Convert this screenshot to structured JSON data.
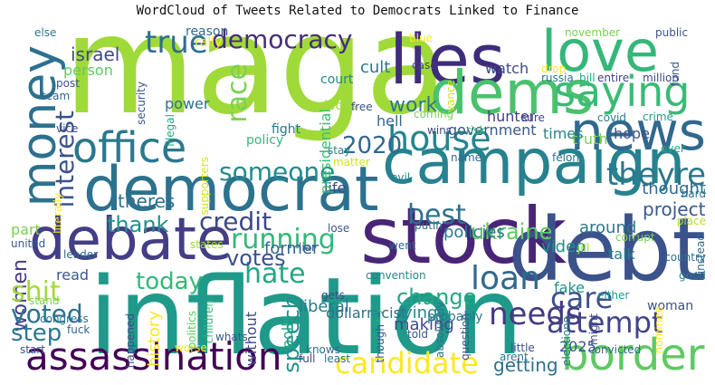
{
  "title": "WordCloud of Tweets Related to Democrats Linked to Finance",
  "words": [
    {
      "t": "maga",
      "c": "#a0da39"
    },
    {
      "t": "inflation",
      "c": "#1f9a8a"
    },
    {
      "t": "lies",
      "c": "#3e2d7b"
    },
    {
      "t": "stock",
      "c": "#482576"
    },
    {
      "t": "debt",
      "c": "#3b528b"
    },
    {
      "t": "campaign",
      "c": "#26828e"
    },
    {
      "t": "debate",
      "c": "#433e85"
    },
    {
      "t": "democrat",
      "c": "#2c728e"
    },
    {
      "t": "love",
      "c": "#35b779"
    },
    {
      "t": "dems",
      "c": "#4ac16d"
    },
    {
      "t": "news",
      "c": "#31688e"
    },
    {
      "t": "money",
      "c": "#2d708e"
    },
    {
      "t": "office",
      "c": "#2a788e"
    },
    {
      "t": "house",
      "c": "#25858e"
    },
    {
      "t": "saying",
      "c": "#3aba76"
    },
    {
      "t": "assassination",
      "c": "#440154"
    },
    {
      "t": "border",
      "c": "#5ec962"
    },
    {
      "t": "candidate",
      "c": "#fde725"
    },
    {
      "t": "democracy",
      "c": "#472d7b"
    },
    {
      "t": "true",
      "c": "#2e6f8e"
    },
    {
      "t": "race",
      "c": "#7ad151"
    },
    {
      "t": "interest",
      "c": "#3b528b"
    },
    {
      "t": "2020",
      "c": "#31688e"
    },
    {
      "t": "someone",
      "c": "#228c8d"
    },
    {
      "t": "best",
      "c": "#2c728e"
    },
    {
      "t": "theyre",
      "c": "#2a788e"
    },
    {
      "t": "running",
      "c": "#35b779"
    },
    {
      "t": "credit",
      "c": "#3e4989"
    },
    {
      "t": "thank",
      "c": "#21918c"
    },
    {
      "t": "women",
      "c": "#433e85"
    },
    {
      "t": "shit",
      "c": "#a0da39"
    },
    {
      "t": "voted",
      "c": "#2c728e"
    },
    {
      "t": "step",
      "c": "#2a788e"
    },
    {
      "t": "hate",
      "c": "#22a884"
    },
    {
      "t": "votes",
      "c": "#3b528b"
    },
    {
      "t": "today",
      "c": "#35b779"
    },
    {
      "t": "speech",
      "c": "#21918c"
    },
    {
      "t": "loan",
      "c": "#31688e"
    },
    {
      "t": "care",
      "c": "#3b528b"
    },
    {
      "t": "needs",
      "c": "#443a83"
    },
    {
      "t": "attempt",
      "c": "#414487"
    },
    {
      "t": "change",
      "c": "#22a884"
    },
    {
      "t": "ukraine",
      "c": "#5ec962"
    },
    {
      "t": "project",
      "c": "#38588c"
    },
    {
      "t": "thought",
      "c": "#2f6b8e"
    },
    {
      "t": "work",
      "c": "#2a788e"
    },
    {
      "t": "israel",
      "c": "#3e4989"
    },
    {
      "t": "hunter",
      "c": "#433e85"
    },
    {
      "t": "hope",
      "c": "#3b528b"
    },
    {
      "t": "truth",
      "c": "#7ad151"
    },
    {
      "t": "cult",
      "c": "#2a788e"
    },
    {
      "t": "watch",
      "c": "#3e4989"
    },
    {
      "t": "hell",
      "c": "#31688e"
    },
    {
      "t": "government",
      "c": "#38588c"
    },
    {
      "t": "times",
      "c": "#26828e"
    },
    {
      "t": "theres",
      "c": "#2c728e"
    },
    {
      "t": "getting",
      "c": "#2e6f8e"
    },
    {
      "t": "making",
      "c": "#3e4989"
    },
    {
      "t": "lying",
      "c": "#25858e"
    },
    {
      "t": "woman",
      "c": "#3b528b"
    },
    {
      "t": "talk",
      "c": "#26828e"
    },
    {
      "t": "around",
      "c": "#2a788e"
    },
    {
      "t": "video",
      "c": "#21918c"
    },
    {
      "t": "policies",
      "c": "#2a788e"
    },
    {
      "t": "former",
      "c": "#31688e"
    },
    {
      "t": "life",
      "c": "#3e4989"
    },
    {
      "t": "history",
      "c": "#fde725"
    },
    {
      "t": "power",
      "c": "#2d708e"
    },
    {
      "t": "person",
      "c": "#5ec962"
    },
    {
      "t": "fake",
      "c": "#21918c"
    },
    {
      "t": "read",
      "c": "#38588c"
    },
    {
      "t": "part",
      "c": "#7ad151"
    },
    {
      "t": "2025",
      "c": "#3b528b"
    },
    {
      "t": "dollarracist",
      "c": "#2d708e"
    },
    {
      "t": "liberal",
      "c": "#2a788e"
    },
    {
      "t": "probably",
      "c": "#2a788e"
    },
    {
      "t": "polls",
      "c": "#22a884"
    },
    {
      "t": "without",
      "c": "#3e4989"
    },
    {
      "t": "presidential",
      "c": "#3aba76"
    },
    {
      "t": "fight",
      "c": "#2a788e"
    },
    {
      "t": "policy",
      "c": "#35b779"
    },
    {
      "t": "looks",
      "c": "#a0da39"
    },
    {
      "t": "reason",
      "c": "#31688e"
    },
    {
      "t": "rally",
      "c": "#fde725"
    },
    {
      "t": "else",
      "c": "#2a788e"
    },
    {
      "t": "post",
      "c": "#3b528b"
    },
    {
      "t": "team",
      "c": "#31688e"
    },
    {
      "t": "vice",
      "c": "#3e4989"
    },
    {
      "t": "security",
      "c": "#38588c"
    },
    {
      "t": "illegal",
      "c": "#22a884"
    },
    {
      "t": "supporters",
      "c": "#d2e21b"
    },
    {
      "t": "court",
      "c": "#25858e"
    },
    {
      "t": "blue",
      "c": "#fde725"
    },
    {
      "t": "case",
      "c": "#433e85"
    },
    {
      "t": "drop",
      "c": "#fde725"
    },
    {
      "t": "november",
      "c": "#7ad151"
    },
    {
      "t": "public",
      "c": "#3b528b"
    },
    {
      "t": "russia",
      "c": "#2c728e"
    },
    {
      "t": "bill",
      "c": "#22a884"
    },
    {
      "t": "entire",
      "c": "#414487"
    },
    {
      "t": "million",
      "c": "#3e4989"
    },
    {
      "t": "fund",
      "c": "#38588c"
    },
    {
      "t": "covid",
      "c": "#26828e"
    },
    {
      "t": "crime",
      "c": "#1f9a8a"
    },
    {
      "t": "hard",
      "c": "#2a788e"
    },
    {
      "t": "place",
      "c": "#b5de2b"
    },
    {
      "t": "instead",
      "c": "#31688e"
    },
    {
      "t": "free",
      "c": "#3b528b"
    },
    {
      "t": "coming",
      "c": "#7ad151"
    },
    {
      "t": "wins",
      "c": "#3e4989"
    },
    {
      "t": "risk",
      "c": "#35b779"
    },
    {
      "t": "felon",
      "c": "#2c728e"
    },
    {
      "t": "stay",
      "c": "#25858e"
    },
    {
      "t": "matter",
      "c": "#d2e21b"
    },
    {
      "t": "name",
      "c": "#31688e"
    },
    {
      "t": "evil",
      "c": "#25858e"
    },
    {
      "t": "putin",
      "c": "#2c728e"
    },
    {
      "t": "corrupt",
      "c": "#7ad151"
    },
    {
      "t": "jill",
      "c": "#a0da39"
    },
    {
      "t": "went",
      "c": "#31688e"
    },
    {
      "t": "liar",
      "c": "#3b528b"
    },
    {
      "t": "lose",
      "c": "#38588c"
    },
    {
      "t": "gets",
      "c": "#3e4989"
    },
    {
      "t": "convention",
      "c": "#25858e"
    },
    {
      "t": "either",
      "c": "#1f9a8a"
    },
    {
      "t": "nominee",
      "c": "#fde725"
    },
    {
      "t": "might",
      "c": "#3e4989"
    },
    {
      "t": "elections",
      "c": "#2a788e"
    },
    {
      "t": "question",
      "c": "#3b528b"
    },
    {
      "t": "absolutely",
      "c": "#2e6f8e"
    },
    {
      "t": "told",
      "c": "#38588c"
    },
    {
      "t": "primary",
      "c": "#22a884"
    },
    {
      "t": "knows",
      "c": "#31688e"
    },
    {
      "t": "least",
      "c": "#2c728e"
    },
    {
      "t": "full",
      "c": "#3e4989"
    },
    {
      "t": "little",
      "c": "#3b528b"
    },
    {
      "t": "arent",
      "c": "#2a788e"
    },
    {
      "t": "convicted",
      "c": "#31688e"
    },
    {
      "t": "worse",
      "c": "#fde725"
    },
    {
      "t": "whats",
      "c": "#38588c"
    },
    {
      "t": "children",
      "c": "#3aba76"
    },
    {
      "t": "politics",
      "c": "#5ec962"
    },
    {
      "t": "happened",
      "c": "#3e4989"
    },
    {
      "t": "fuck",
      "c": "#31688e"
    },
    {
      "t": "congress",
      "c": "#2a788e"
    },
    {
      "t": "stand",
      "c": "#7ad151"
    },
    {
      "t": "start",
      "c": "#3b528b"
    },
    {
      "t": "united",
      "c": "#38588c"
    },
    {
      "t": "leader",
      "c": "#31688e"
    },
    {
      "t": "literally",
      "c": "#fde725"
    },
    {
      "t": "states",
      "c": "#a0da39"
    },
    {
      "t": "ever",
      "c": "#22a884"
    },
    {
      "t": "sure",
      "c": "#3e4989"
    },
    {
      "t": "vance",
      "c": "#d2e21b"
    },
    {
      "t": "though",
      "c": "#3b528b"
    },
    {
      "t": "good",
      "c": "#2a788e"
    },
    {
      "t": "country",
      "c": "#2c728e"
    }
  ]
}
